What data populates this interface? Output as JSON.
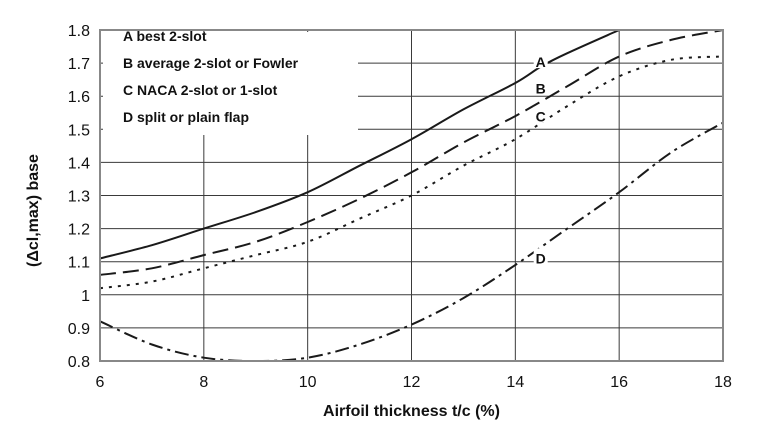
{
  "chart_data": {
    "type": "line",
    "title": "",
    "xlabel": "Airfoil thickness t/c (%)",
    "ylabel": "(Δcl,max) base",
    "xlim": [
      6,
      18
    ],
    "ylim": [
      0.8,
      1.8
    ],
    "x_ticks": [
      "6",
      "8",
      "10",
      "12",
      "14",
      "16",
      "18"
    ],
    "y_ticks": [
      "0.8",
      "0.9",
      "1",
      "1.1",
      "1.2",
      "1.3",
      "1.4",
      "1.5",
      "1.6",
      "1.7",
      "1.8"
    ],
    "grid": true,
    "legend_position": "top-left",
    "legend": [
      "A  best 2-slot",
      "B   average 2-slot or Fowler",
      "C  NACA 2-slot or 1-slot",
      "D  split or plain flap"
    ],
    "series": [
      {
        "name": "A",
        "style": "solid",
        "x": [
          6,
          7,
          8,
          9,
          10,
          11,
          12,
          13,
          14,
          14.5,
          15,
          16
        ],
        "y": [
          1.11,
          1.15,
          1.2,
          1.25,
          1.31,
          1.39,
          1.47,
          1.56,
          1.64,
          1.69,
          1.73,
          1.8
        ]
      },
      {
        "name": "B",
        "style": "dashed",
        "x": [
          6,
          7,
          8,
          9,
          10,
          11,
          12,
          13,
          14,
          15,
          16,
          17,
          18
        ],
        "y": [
          1.06,
          1.08,
          1.12,
          1.16,
          1.22,
          1.29,
          1.37,
          1.46,
          1.54,
          1.63,
          1.72,
          1.77,
          1.8
        ]
      },
      {
        "name": "C",
        "style": "dotted",
        "x": [
          6,
          7,
          8,
          9,
          10,
          11,
          12,
          13,
          14,
          15,
          16,
          17,
          18
        ],
        "y": [
          1.02,
          1.04,
          1.08,
          1.12,
          1.16,
          1.23,
          1.3,
          1.39,
          1.47,
          1.57,
          1.66,
          1.71,
          1.72
        ]
      },
      {
        "name": "D",
        "style": "dash-dot",
        "x": [
          6,
          7,
          8,
          9,
          10,
          11,
          12,
          13,
          14,
          15,
          16,
          17,
          18
        ],
        "y": [
          0.92,
          0.85,
          0.81,
          0.8,
          0.81,
          0.85,
          0.91,
          0.99,
          1.09,
          1.2,
          1.31,
          1.43,
          1.52
        ]
      }
    ],
    "curve_labels": [
      {
        "text": "A",
        "x": 14.45,
        "y": 1.7
      },
      {
        "text": "B",
        "x": 14.45,
        "y": 1.62
      },
      {
        "text": "C",
        "x": 14.45,
        "y": 1.535
      },
      {
        "text": "D",
        "x": 14.45,
        "y": 1.107
      }
    ],
    "colors": {
      "lines": "#1a1a1a",
      "grid": "#3a3a3a",
      "frame": "#888888"
    }
  }
}
